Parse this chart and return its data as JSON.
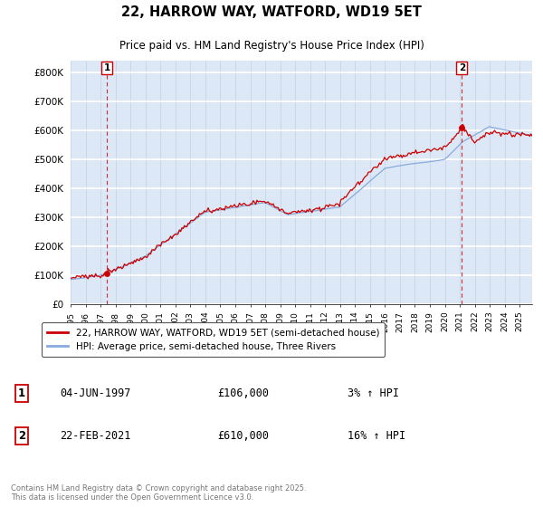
{
  "title": "22, HARROW WAY, WATFORD, WD19 5ET",
  "subtitle": "Price paid vs. HM Land Registry's House Price Index (HPI)",
  "ylabel_ticks": [
    "£0",
    "£100K",
    "£200K",
    "£300K",
    "£400K",
    "£500K",
    "£600K",
    "£700K",
    "£800K"
  ],
  "ylim": [
    0,
    840000
  ],
  "xlim_start": 1995.0,
  "xlim_end": 2025.83,
  "sale1_date": 1997.42,
  "sale1_price": 106000,
  "sale1_label": "1",
  "sale2_date": 2021.13,
  "sale2_price": 610000,
  "sale2_label": "2",
  "line1_color": "#cc0000",
  "line2_color": "#88aadd",
  "dot_color": "#cc0000",
  "vline_color": "#cc0000",
  "legend_line1": "22, HARROW WAY, WATFORD, WD19 5ET (semi-detached house)",
  "legend_line2": "HPI: Average price, semi-detached house, Three Rivers",
  "annotation1_num": "1",
  "annotation1_date": "04-JUN-1997",
  "annotation1_price": "£106,000",
  "annotation1_hpi": "3% ↑ HPI",
  "annotation2_num": "2",
  "annotation2_date": "22-FEB-2021",
  "annotation2_price": "£610,000",
  "annotation2_hpi": "16% ↑ HPI",
  "footer": "Contains HM Land Registry data © Crown copyright and database right 2025.\nThis data is licensed under the Open Government Licence v3.0.",
  "background_color": "#dce8f5",
  "grid_color": "#c0d0e8",
  "fig_bg": "#ffffff"
}
